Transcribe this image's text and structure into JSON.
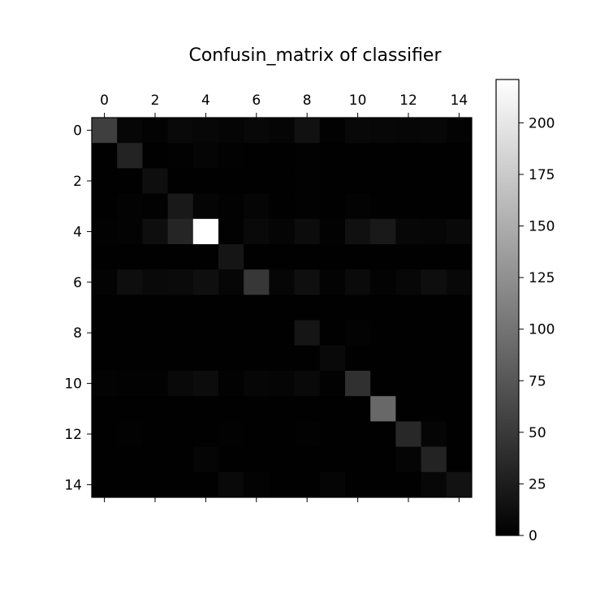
{
  "chart_data": {
    "type": "heatmap",
    "title": "Confusin_matrix of classifier",
    "colormap": "gray",
    "x_ticks": [
      "0",
      "2",
      "4",
      "6",
      "8",
      "10",
      "12",
      "14"
    ],
    "y_ticks": [
      "0",
      "2",
      "4",
      "6",
      "8",
      "10",
      "12",
      "14"
    ],
    "x_tick_position": "top",
    "colorbar": {
      "min": 0,
      "max": 221,
      "ticks": [
        0,
        25,
        50,
        75,
        100,
        125,
        150,
        175,
        200
      ],
      "tick_labels": [
        "0",
        "25",
        "50",
        "75",
        "100",
        "125",
        "150",
        "175",
        "200"
      ]
    },
    "rows": [
      "0",
      "1",
      "2",
      "3",
      "4",
      "5",
      "6",
      "7",
      "8",
      "9",
      "10",
      "11",
      "12",
      "13",
      "14"
    ],
    "columns": [
      "0",
      "1",
      "2",
      "3",
      "4",
      "5",
      "6",
      "7",
      "8",
      "9",
      "10",
      "11",
      "12",
      "13",
      "14"
    ],
    "matrix": [
      [
        55,
        5,
        3,
        8,
        6,
        4,
        7,
        4,
        15,
        2,
        7,
        6,
        5,
        6,
        3
      ],
      [
        1,
        30,
        1,
        2,
        4,
        2,
        1,
        1,
        2,
        1,
        1,
        1,
        1,
        1,
        1
      ],
      [
        1,
        1,
        12,
        1,
        1,
        1,
        1,
        1,
        2,
        1,
        1,
        1,
        1,
        1,
        1
      ],
      [
        1,
        3,
        2,
        22,
        4,
        2,
        4,
        1,
        2,
        1,
        3,
        1,
        1,
        1,
        1
      ],
      [
        2,
        3,
        12,
        32,
        221,
        2,
        8,
        4,
        10,
        2,
        14,
        22,
        6,
        5,
        8
      ],
      [
        1,
        1,
        1,
        1,
        1,
        18,
        1,
        1,
        1,
        1,
        1,
        1,
        1,
        1,
        1
      ],
      [
        3,
        12,
        8,
        9,
        13,
        5,
        48,
        5,
        13,
        3,
        9,
        3,
        6,
        12,
        7
      ],
      [
        1,
        1,
        1,
        1,
        1,
        1,
        1,
        1,
        1,
        1,
        1,
        1,
        1,
        1,
        1
      ],
      [
        1,
        1,
        1,
        1,
        1,
        1,
        1,
        1,
        18,
        1,
        3,
        1,
        1,
        1,
        1
      ],
      [
        1,
        1,
        1,
        1,
        1,
        1,
        1,
        1,
        1,
        8,
        1,
        1,
        1,
        1,
        1
      ],
      [
        3,
        2,
        2,
        8,
        10,
        2,
        5,
        4,
        8,
        2,
        42,
        1,
        1,
        1,
        1
      ],
      [
        1,
        1,
        1,
        1,
        1,
        1,
        1,
        1,
        1,
        1,
        1,
        90,
        1,
        1,
        1
      ],
      [
        1,
        2,
        1,
        1,
        1,
        2,
        1,
        1,
        2,
        1,
        1,
        1,
        35,
        4,
        1
      ],
      [
        1,
        1,
        1,
        1,
        4,
        1,
        1,
        1,
        1,
        1,
        1,
        1,
        4,
        30,
        1
      ],
      [
        1,
        1,
        1,
        1,
        1,
        8,
        3,
        1,
        1,
        4,
        1,
        1,
        1,
        6,
        16
      ]
    ]
  }
}
